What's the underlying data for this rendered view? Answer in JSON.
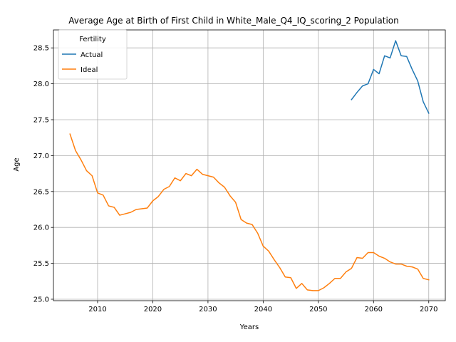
{
  "chart_data": {
    "type": "line",
    "title": "Average Age at Birth of First Child in White_Male_Q4_IQ_scoring_2 Population",
    "xlabel": "Years",
    "ylabel": "Age",
    "xlim": [
      2002,
      2073
    ],
    "ylim": [
      24.98,
      28.75
    ],
    "xticks": [
      2010,
      2020,
      2030,
      2040,
      2050,
      2060,
      2070
    ],
    "yticks": [
      25.0,
      25.5,
      26.0,
      26.5,
      27.0,
      27.5,
      28.0,
      28.5
    ],
    "grid": true,
    "legend": {
      "title": "Fertility",
      "placement": "top-left"
    },
    "series": [
      {
        "name": "Actual",
        "color": "#1f77b4",
        "x": [
          2056,
          2057,
          2058,
          2059,
          2060,
          2061,
          2062,
          2063,
          2064,
          2065,
          2066,
          2067,
          2068,
          2069,
          2070
        ],
        "y": [
          27.78,
          27.88,
          27.97,
          28.0,
          28.2,
          28.14,
          28.39,
          28.36,
          28.6,
          28.39,
          28.38,
          28.2,
          28.04,
          27.75,
          27.59
        ]
      },
      {
        "name": "Ideal",
        "color": "#ff7f0e",
        "x": [
          2005,
          2006,
          2007,
          2008,
          2009,
          2010,
          2011,
          2012,
          2013,
          2014,
          2015,
          2016,
          2017,
          2018,
          2019,
          2020,
          2021,
          2022,
          2023,
          2024,
          2025,
          2026,
          2027,
          2028,
          2029,
          2030,
          2031,
          2032,
          2033,
          2034,
          2035,
          2036,
          2037,
          2038,
          2039,
          2040,
          2041,
          2042,
          2043,
          2044,
          2045,
          2046,
          2047,
          2048,
          2049,
          2050,
          2051,
          2052,
          2053,
          2054,
          2055,
          2056,
          2057,
          2058,
          2059,
          2060,
          2061,
          2062,
          2063,
          2064,
          2065,
          2066,
          2067,
          2068,
          2069,
          2070
        ],
        "y": [
          27.3,
          27.07,
          26.94,
          26.79,
          26.72,
          26.48,
          26.45,
          26.3,
          26.28,
          26.17,
          26.19,
          26.21,
          26.25,
          26.26,
          26.27,
          26.37,
          26.43,
          26.53,
          26.57,
          26.69,
          26.65,
          26.75,
          26.72,
          26.81,
          26.74,
          26.72,
          26.7,
          26.62,
          26.56,
          26.44,
          26.35,
          26.11,
          26.06,
          26.04,
          25.92,
          25.74,
          25.67,
          25.55,
          25.44,
          25.31,
          25.3,
          25.15,
          25.22,
          25.13,
          25.12,
          25.12,
          25.16,
          25.22,
          25.29,
          25.29,
          25.38,
          25.43,
          25.58,
          25.57,
          25.65,
          25.65,
          25.6,
          25.57,
          25.52,
          25.49,
          25.49,
          25.46,
          25.45,
          25.42,
          25.29,
          25.27
        ]
      }
    ]
  }
}
